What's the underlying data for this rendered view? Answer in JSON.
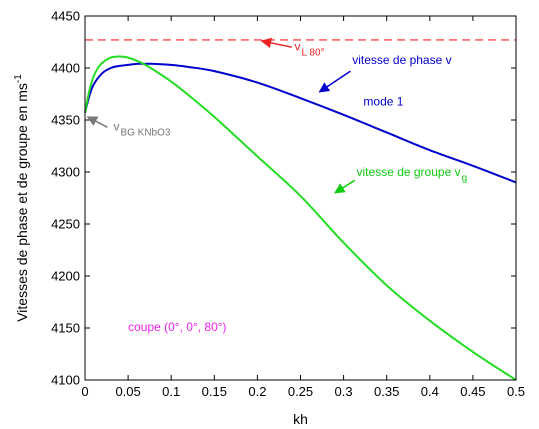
{
  "chart_data": {
    "type": "line",
    "title": "",
    "xlabel": "kh",
    "ylabel": "Vitesses de phase et de groupe en ms",
    "ylabel_sup": "-1",
    "xlim": [
      0,
      0.5
    ],
    "ylim": [
      4100,
      4450
    ],
    "x_ticks": [
      0,
      0.05,
      0.1,
      0.15,
      0.2,
      0.25,
      0.3,
      0.35,
      0.4,
      0.45,
      0.5
    ],
    "x_tick_labels": [
      "0",
      "0.05",
      "0.1",
      "0.15",
      "0.2",
      "0.25",
      "0.3",
      "0.35",
      "0.4",
      "0.45",
      "0.5"
    ],
    "y_ticks": [
      4100,
      4150,
      4200,
      4250,
      4300,
      4350,
      4400,
      4450
    ],
    "y_tick_labels": [
      "4100",
      "4150",
      "4200",
      "4250",
      "4300",
      "4350",
      "4400",
      "4450"
    ],
    "grid": false,
    "series": [
      {
        "name": "vitesse de phase v",
        "color": "#0000cc",
        "style": "solid",
        "x": [
          0,
          0.005,
          0.01,
          0.02,
          0.03,
          0.04,
          0.05,
          0.06,
          0.07,
          0.08,
          0.1,
          0.12,
          0.15,
          0.2,
          0.25,
          0.3,
          0.35,
          0.4,
          0.45,
          0.5
        ],
        "y": [
          4357,
          4373,
          4384,
          4395,
          4400,
          4402,
          4403,
          4404,
          4404,
          4404,
          4403,
          4401,
          4397,
          4386,
          4371,
          4355,
          4338,
          4321,
          4306,
          4290
        ]
      },
      {
        "name": "vitesse de groupe v",
        "name_sub": "g",
        "color": "#22dd22",
        "style": "solid",
        "x": [
          0,
          0.005,
          0.01,
          0.015,
          0.02,
          0.03,
          0.04,
          0.05,
          0.06,
          0.07,
          0.08,
          0.1,
          0.12,
          0.15,
          0.2,
          0.25,
          0.3,
          0.35,
          0.4,
          0.45,
          0.5
        ],
        "y": [
          4357,
          4378,
          4392,
          4400,
          4405,
          4410,
          4411,
          4410,
          4407,
          4403,
          4398,
          4387,
          4374,
          4353,
          4315,
          4277,
          4232,
          4191,
          4157,
          4127,
          4100
        ]
      },
      {
        "name": "v",
        "name_sub": "L 80°",
        "color": "#ff2222",
        "style": "dashed",
        "x": [
          0,
          0.5
        ],
        "y": [
          4427,
          4427
        ]
      }
    ],
    "annotations": [
      {
        "id": "vl",
        "text": "v",
        "sub": "L 80°",
        "color": "#ee2222",
        "text_at": [
          0.243,
          4417
        ],
        "arrow_from": [
          0.24,
          4420
        ],
        "arrow_to": [
          0.205,
          4426
        ]
      },
      {
        "id": "vphase",
        "text": "vitesse de phase v",
        "sub": "",
        "color": "#0000cc",
        "text_at": [
          0.31,
          4404
        ],
        "arrow_from": [
          0.308,
          4397
        ],
        "arrow_to": [
          0.272,
          4377
        ]
      },
      {
        "id": "mode",
        "text": "mode 1",
        "sub": "",
        "color": "#0000cc",
        "text_at": [
          0.323,
          4364
        ]
      },
      {
        "id": "vbg",
        "text": "v",
        "sub": "BG KNbO3",
        "color": "#777777",
        "text_at": [
          0.033,
          4340
        ],
        "arrow_from": [
          0.026,
          4343
        ],
        "arrow_to": [
          0.003,
          4353
        ]
      },
      {
        "id": "vgroupe",
        "text": "vitesse de groupe v",
        "sub": "g",
        "color": "#11cc11",
        "text_at": [
          0.315,
          4296
        ],
        "arrow_from": [
          0.313,
          4292
        ],
        "arrow_to": [
          0.29,
          4280
        ]
      },
      {
        "id": "coupe",
        "text": "coupe (0°, 0°, 80°)",
        "sub": "",
        "color": "#ee22ee",
        "text_at": [
          0.05,
          4147
        ]
      }
    ]
  }
}
